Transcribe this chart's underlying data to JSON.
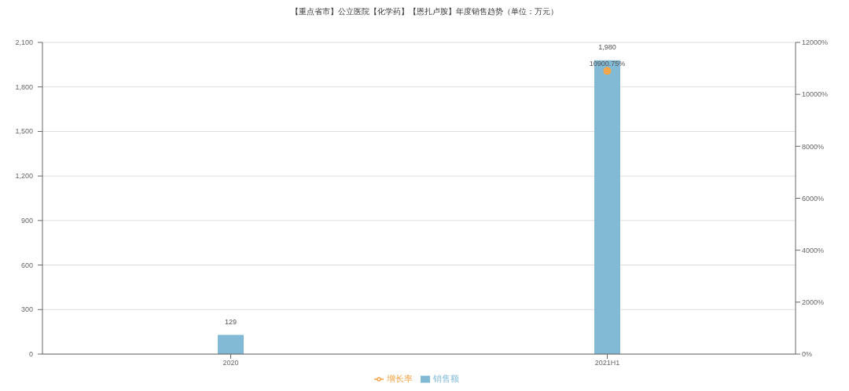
{
  "chart_data": {
    "type": "bar",
    "title": "【重点省市】公立医院【化学药】【恩扎卢胺】年度销售趋势（单位：万元）",
    "categories": [
      "2020",
      "2021H1"
    ],
    "series": [
      {
        "name": "销售额",
        "color": "#82bad6",
        "values": [
          129,
          1980
        ],
        "value_labels": [
          "129",
          "1,980"
        ]
      },
      {
        "name": "增长率",
        "type": "line",
        "axis": "y2",
        "color": "#f5a54a",
        "values": [
          null,
          10900.75
        ],
        "value_labels": [
          null,
          "10900.75%"
        ]
      }
    ],
    "ylim": [
      0,
      2100
    ],
    "yticks": [
      0,
      300,
      600,
      900,
      {
        "value": 1200,
        "label": "1,200"
      },
      {
        "value": 1500,
        "label": "1,500"
      },
      {
        "value": 1800,
        "label": "1,800"
      },
      {
        "value": 2100,
        "label": "2,100"
      }
    ],
    "y2lim": [
      0,
      12000
    ],
    "y2ticks": [
      {
        "value": 0,
        "label": "0%"
      },
      {
        "value": 2000,
        "label": "2000%"
      },
      {
        "value": 4000,
        "label": "4000%"
      },
      {
        "value": 6000,
        "label": "6000%"
      },
      {
        "value": 8000,
        "label": "8000%"
      },
      {
        "value": 10000,
        "label": "10000%"
      },
      {
        "value": 12000,
        "label": "12000%"
      }
    ],
    "grid": "y",
    "legend": "bottom",
    "marker": "circle"
  }
}
